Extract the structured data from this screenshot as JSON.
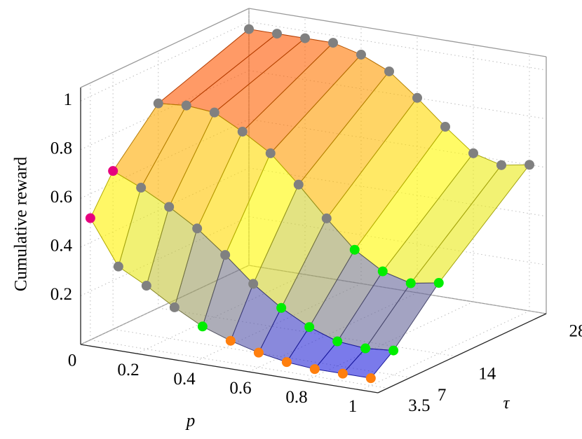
{
  "chart_data": {
    "type": "surface",
    "zlabel": "Cumulative reward",
    "xlabel": "p",
    "ylabel": "τ",
    "p": [
      0,
      0.1,
      0.2,
      0.3,
      0.4,
      0.5,
      0.6,
      0.7,
      0.8,
      0.9,
      1
    ],
    "xlim": [
      0,
      1.06
    ],
    "ylim": [
      2,
      28
    ],
    "zlim": [
      0,
      1.055
    ],
    "xticks": [
      0,
      0.2,
      0.4,
      0.6,
      0.8,
      1
    ],
    "yticks": [
      3.5,
      7,
      14,
      28
    ],
    "zticks": [
      0.2,
      0.4,
      0.6,
      0.8,
      1
    ],
    "grid": true,
    "opacity": 0.6,
    "colormap": [
      [
        0,
        "#0000ff"
      ],
      [
        0.45,
        "#ffff00"
      ],
      [
        0.75,
        "#ff9900"
      ],
      [
        1,
        "#ff0000"
      ]
    ],
    "surface": [
      {
        "tau": 3.5,
        "values": [
          0.5,
          0.32,
          0.26,
          0.19,
          0.13,
          0.09,
          0.06,
          0.04,
          0.03,
          0.03,
          0.03
        ],
        "marker_colors": [
          "#e6007e",
          "#808080",
          "#808080",
          "#808080",
          "#00ee00",
          "#ff7f0e",
          "#ff7f0e",
          "#ff7f0e",
          "#ff7f0e",
          "#ff7f0e",
          "#ff7f0e"
        ]
      },
      {
        "tau": 7,
        "values": [
          0.65,
          0.6,
          0.54,
          0.47,
          0.38,
          0.28,
          0.2,
          0.14,
          0.1,
          0.09,
          0.1
        ],
        "marker_colors": [
          "#e6007e",
          "#808080",
          "#808080",
          "#808080",
          "#808080",
          "#808080",
          "#00ee00",
          "#00ee00",
          "#00ee00",
          "#00ee00",
          "#00ee00"
        ]
      },
      {
        "tau": 14,
        "values": [
          0.84,
          0.85,
          0.84,
          0.78,
          0.71,
          0.6,
          0.48,
          0.37,
          0.3,
          0.27,
          0.29
        ],
        "marker_colors": [
          "#808080",
          "#808080",
          "#808080",
          "#808080",
          "#808080",
          "#808080",
          "#808080",
          "#00ee00",
          "#00ee00",
          "#00ee00",
          "#00ee00"
        ]
      },
      {
        "tau": 28,
        "values": [
          0.97,
          0.97,
          0.97,
          0.97,
          0.94,
          0.89,
          0.8,
          0.7,
          0.61,
          0.58,
          0.6
        ],
        "marker_colors": [
          "#808080",
          "#808080",
          "#808080",
          "#808080",
          "#808080",
          "#808080",
          "#808080",
          "#808080",
          "#808080",
          "#808080",
          "#808080"
        ]
      }
    ]
  }
}
